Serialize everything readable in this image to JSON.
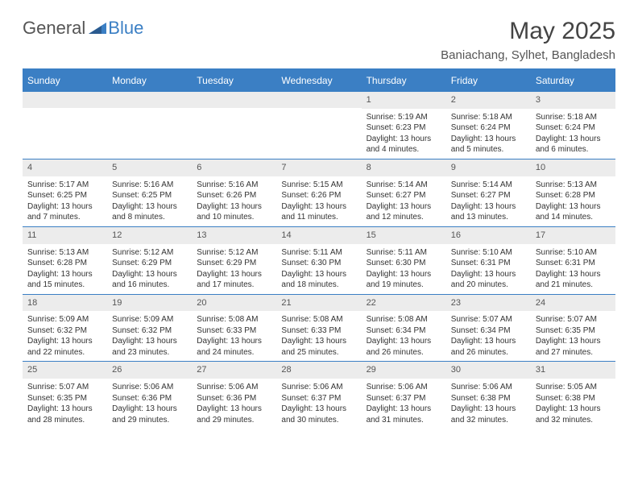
{
  "logo": {
    "text1": "General",
    "text2": "Blue"
  },
  "title": "May 2025",
  "location": "Baniachang, Sylhet, Bangladesh",
  "colors": {
    "header_blue": "#3b7fc4",
    "row_gray": "#ececec",
    "text_dark": "#333333",
    "text_muted": "#555555",
    "background": "#ffffff"
  },
  "weekdays": [
    "Sunday",
    "Monday",
    "Tuesday",
    "Wednesday",
    "Thursday",
    "Friday",
    "Saturday"
  ],
  "weeks": [
    [
      null,
      null,
      null,
      null,
      {
        "n": "1",
        "sr": "Sunrise: 5:19 AM",
        "ss": "Sunset: 6:23 PM",
        "dl1": "Daylight: 13 hours",
        "dl2": "and 4 minutes."
      },
      {
        "n": "2",
        "sr": "Sunrise: 5:18 AM",
        "ss": "Sunset: 6:24 PM",
        "dl1": "Daylight: 13 hours",
        "dl2": "and 5 minutes."
      },
      {
        "n": "3",
        "sr": "Sunrise: 5:18 AM",
        "ss": "Sunset: 6:24 PM",
        "dl1": "Daylight: 13 hours",
        "dl2": "and 6 minutes."
      }
    ],
    [
      {
        "n": "4",
        "sr": "Sunrise: 5:17 AM",
        "ss": "Sunset: 6:25 PM",
        "dl1": "Daylight: 13 hours",
        "dl2": "and 7 minutes."
      },
      {
        "n": "5",
        "sr": "Sunrise: 5:16 AM",
        "ss": "Sunset: 6:25 PM",
        "dl1": "Daylight: 13 hours",
        "dl2": "and 8 minutes."
      },
      {
        "n": "6",
        "sr": "Sunrise: 5:16 AM",
        "ss": "Sunset: 6:26 PM",
        "dl1": "Daylight: 13 hours",
        "dl2": "and 10 minutes."
      },
      {
        "n": "7",
        "sr": "Sunrise: 5:15 AM",
        "ss": "Sunset: 6:26 PM",
        "dl1": "Daylight: 13 hours",
        "dl2": "and 11 minutes."
      },
      {
        "n": "8",
        "sr": "Sunrise: 5:14 AM",
        "ss": "Sunset: 6:27 PM",
        "dl1": "Daylight: 13 hours",
        "dl2": "and 12 minutes."
      },
      {
        "n": "9",
        "sr": "Sunrise: 5:14 AM",
        "ss": "Sunset: 6:27 PM",
        "dl1": "Daylight: 13 hours",
        "dl2": "and 13 minutes."
      },
      {
        "n": "10",
        "sr": "Sunrise: 5:13 AM",
        "ss": "Sunset: 6:28 PM",
        "dl1": "Daylight: 13 hours",
        "dl2": "and 14 minutes."
      }
    ],
    [
      {
        "n": "11",
        "sr": "Sunrise: 5:13 AM",
        "ss": "Sunset: 6:28 PM",
        "dl1": "Daylight: 13 hours",
        "dl2": "and 15 minutes."
      },
      {
        "n": "12",
        "sr": "Sunrise: 5:12 AM",
        "ss": "Sunset: 6:29 PM",
        "dl1": "Daylight: 13 hours",
        "dl2": "and 16 minutes."
      },
      {
        "n": "13",
        "sr": "Sunrise: 5:12 AM",
        "ss": "Sunset: 6:29 PM",
        "dl1": "Daylight: 13 hours",
        "dl2": "and 17 minutes."
      },
      {
        "n": "14",
        "sr": "Sunrise: 5:11 AM",
        "ss": "Sunset: 6:30 PM",
        "dl1": "Daylight: 13 hours",
        "dl2": "and 18 minutes."
      },
      {
        "n": "15",
        "sr": "Sunrise: 5:11 AM",
        "ss": "Sunset: 6:30 PM",
        "dl1": "Daylight: 13 hours",
        "dl2": "and 19 minutes."
      },
      {
        "n": "16",
        "sr": "Sunrise: 5:10 AM",
        "ss": "Sunset: 6:31 PM",
        "dl1": "Daylight: 13 hours",
        "dl2": "and 20 minutes."
      },
      {
        "n": "17",
        "sr": "Sunrise: 5:10 AM",
        "ss": "Sunset: 6:31 PM",
        "dl1": "Daylight: 13 hours",
        "dl2": "and 21 minutes."
      }
    ],
    [
      {
        "n": "18",
        "sr": "Sunrise: 5:09 AM",
        "ss": "Sunset: 6:32 PM",
        "dl1": "Daylight: 13 hours",
        "dl2": "and 22 minutes."
      },
      {
        "n": "19",
        "sr": "Sunrise: 5:09 AM",
        "ss": "Sunset: 6:32 PM",
        "dl1": "Daylight: 13 hours",
        "dl2": "and 23 minutes."
      },
      {
        "n": "20",
        "sr": "Sunrise: 5:08 AM",
        "ss": "Sunset: 6:33 PM",
        "dl1": "Daylight: 13 hours",
        "dl2": "and 24 minutes."
      },
      {
        "n": "21",
        "sr": "Sunrise: 5:08 AM",
        "ss": "Sunset: 6:33 PM",
        "dl1": "Daylight: 13 hours",
        "dl2": "and 25 minutes."
      },
      {
        "n": "22",
        "sr": "Sunrise: 5:08 AM",
        "ss": "Sunset: 6:34 PM",
        "dl1": "Daylight: 13 hours",
        "dl2": "and 26 minutes."
      },
      {
        "n": "23",
        "sr": "Sunrise: 5:07 AM",
        "ss": "Sunset: 6:34 PM",
        "dl1": "Daylight: 13 hours",
        "dl2": "and 26 minutes."
      },
      {
        "n": "24",
        "sr": "Sunrise: 5:07 AM",
        "ss": "Sunset: 6:35 PM",
        "dl1": "Daylight: 13 hours",
        "dl2": "and 27 minutes."
      }
    ],
    [
      {
        "n": "25",
        "sr": "Sunrise: 5:07 AM",
        "ss": "Sunset: 6:35 PM",
        "dl1": "Daylight: 13 hours",
        "dl2": "and 28 minutes."
      },
      {
        "n": "26",
        "sr": "Sunrise: 5:06 AM",
        "ss": "Sunset: 6:36 PM",
        "dl1": "Daylight: 13 hours",
        "dl2": "and 29 minutes."
      },
      {
        "n": "27",
        "sr": "Sunrise: 5:06 AM",
        "ss": "Sunset: 6:36 PM",
        "dl1": "Daylight: 13 hours",
        "dl2": "and 29 minutes."
      },
      {
        "n": "28",
        "sr": "Sunrise: 5:06 AM",
        "ss": "Sunset: 6:37 PM",
        "dl1": "Daylight: 13 hours",
        "dl2": "and 30 minutes."
      },
      {
        "n": "29",
        "sr": "Sunrise: 5:06 AM",
        "ss": "Sunset: 6:37 PM",
        "dl1": "Daylight: 13 hours",
        "dl2": "and 31 minutes."
      },
      {
        "n": "30",
        "sr": "Sunrise: 5:06 AM",
        "ss": "Sunset: 6:38 PM",
        "dl1": "Daylight: 13 hours",
        "dl2": "and 32 minutes."
      },
      {
        "n": "31",
        "sr": "Sunrise: 5:05 AM",
        "ss": "Sunset: 6:38 PM",
        "dl1": "Daylight: 13 hours",
        "dl2": "and 32 minutes."
      }
    ]
  ]
}
